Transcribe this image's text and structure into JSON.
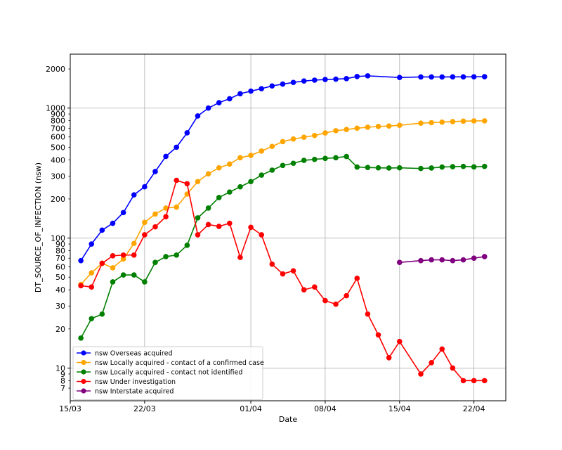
{
  "chart_data": {
    "type": "line",
    "title": "",
    "xlabel": "Date",
    "ylabel": "DT_SOURCE_OF_INFECTION (nsw)",
    "yscale": "log",
    "ylim": [
      5.6,
      2600
    ],
    "xlim": [
      "2020-03-15",
      "2020-04-25"
    ],
    "grid": true,
    "legend_position": "lower-left",
    "x_ticks": [
      {
        "date": "2020-03-15",
        "label": "15/03"
      },
      {
        "date": "2020-03-22",
        "label": "22/03"
      },
      {
        "date": "2020-04-01",
        "label": "01/04"
      },
      {
        "date": "2020-04-08",
        "label": "08/04"
      },
      {
        "date": "2020-04-15",
        "label": "15/04"
      },
      {
        "date": "2020-04-22",
        "label": "22/04"
      }
    ],
    "y_ticks_major": [
      {
        "value": 10,
        "label": "10"
      },
      {
        "value": 100,
        "label": "100"
      },
      {
        "value": 1000,
        "label": "1000"
      }
    ],
    "y_ticks_minor": [
      {
        "value": 7,
        "label": "7"
      },
      {
        "value": 8,
        "label": "8"
      },
      {
        "value": 9,
        "label": "9"
      },
      {
        "value": 20,
        "label": "20"
      },
      {
        "value": 30,
        "label": "30"
      },
      {
        "value": 40,
        "label": "40"
      },
      {
        "value": 50,
        "label": "50"
      },
      {
        "value": 60,
        "label": "60"
      },
      {
        "value": 70,
        "label": "70"
      },
      {
        "value": 80,
        "label": "80"
      },
      {
        "value": 90,
        "label": "90"
      },
      {
        "value": 200,
        "label": "200"
      },
      {
        "value": 300,
        "label": "300"
      },
      {
        "value": 400,
        "label": "400"
      },
      {
        "value": 500,
        "label": "500"
      },
      {
        "value": 600,
        "label": "600"
      },
      {
        "value": 700,
        "label": "700"
      },
      {
        "value": 800,
        "label": "800"
      },
      {
        "value": 900,
        "label": "900"
      },
      {
        "value": 2000,
        "label": "2000"
      }
    ],
    "series": [
      {
        "name": "nsw Overseas acquired",
        "color": "#0000ff",
        "x": [
          "2020-03-16",
          "2020-03-17",
          "2020-03-18",
          "2020-03-19",
          "2020-03-20",
          "2020-03-21",
          "2020-03-22",
          "2020-03-23",
          "2020-03-24",
          "2020-03-25",
          "2020-03-26",
          "2020-03-27",
          "2020-03-28",
          "2020-03-29",
          "2020-03-30",
          "2020-03-31",
          "2020-04-01",
          "2020-04-02",
          "2020-04-03",
          "2020-04-04",
          "2020-04-05",
          "2020-04-06",
          "2020-04-07",
          "2020-04-08",
          "2020-04-09",
          "2020-04-10",
          "2020-04-11",
          "2020-04-12",
          "2020-04-15",
          "2020-04-17",
          "2020-04-18",
          "2020-04-19",
          "2020-04-20",
          "2020-04-21",
          "2020-04-22",
          "2020-04-23"
        ],
        "y": [
          67,
          90,
          115,
          130,
          157,
          215,
          248,
          325,
          425,
          500,
          645,
          870,
          1000,
          1100,
          1180,
          1290,
          1350,
          1410,
          1480,
          1530,
          1575,
          1615,
          1640,
          1660,
          1670,
          1685,
          1750,
          1770,
          1720,
          1735,
          1735,
          1735,
          1738,
          1738,
          1740,
          1745
        ]
      },
      {
        "name": "nsw Locally acquired - contact of a confirmed case",
        "color": "#ffa500",
        "x": [
          "2020-03-16",
          "2020-03-17",
          "2020-03-18",
          "2020-03-19",
          "2020-03-20",
          "2020-03-21",
          "2020-03-22",
          "2020-03-23",
          "2020-03-24",
          "2020-03-25",
          "2020-03-26",
          "2020-03-27",
          "2020-03-28",
          "2020-03-29",
          "2020-03-30",
          "2020-03-31",
          "2020-04-01",
          "2020-04-02",
          "2020-04-03",
          "2020-04-04",
          "2020-04-05",
          "2020-04-06",
          "2020-04-07",
          "2020-04-08",
          "2020-04-09",
          "2020-04-10",
          "2020-04-11",
          "2020-04-12",
          "2020-04-13",
          "2020-04-14",
          "2020-04-15",
          "2020-04-17",
          "2020-04-18",
          "2020-04-19",
          "2020-04-20",
          "2020-04-21",
          "2020-04-22",
          "2020-04-23"
        ],
        "y": [
          44,
          54,
          64,
          59,
          69,
          91,
          132,
          153,
          170,
          173,
          218,
          272,
          312,
          347,
          371,
          415,
          433,
          467,
          507,
          552,
          578,
          597,
          615,
          644,
          670,
          684,
          700,
          712,
          722,
          728,
          737,
          765,
          772,
          780,
          787,
          793,
          797,
          797
        ]
      },
      {
        "name": "nsw Locally acquired - contact not identified",
        "color": "#008000",
        "x": [
          "2020-03-16",
          "2020-03-17",
          "2020-03-18",
          "2020-03-19",
          "2020-03-20",
          "2020-03-21",
          "2020-03-22",
          "2020-03-23",
          "2020-03-24",
          "2020-03-25",
          "2020-03-26",
          "2020-03-27",
          "2020-03-28",
          "2020-03-29",
          "2020-03-30",
          "2020-03-31",
          "2020-04-01",
          "2020-04-02",
          "2020-04-03",
          "2020-04-04",
          "2020-04-05",
          "2020-04-06",
          "2020-04-07",
          "2020-04-08",
          "2020-04-09",
          "2020-04-10",
          "2020-04-11",
          "2020-04-12",
          "2020-04-13",
          "2020-04-14",
          "2020-04-15",
          "2020-04-17",
          "2020-04-18",
          "2020-04-19",
          "2020-04-20",
          "2020-04-21",
          "2020-04-22",
          "2020-04-23"
        ],
        "y": [
          17,
          24,
          26,
          46,
          52,
          52,
          46,
          65,
          72,
          74,
          88,
          143,
          170,
          205,
          226,
          248,
          272,
          305,
          333,
          362,
          376,
          396,
          403,
          410,
          415,
          424,
          352,
          349,
          347,
          346,
          347,
          343,
          346,
          352,
          354,
          356,
          353,
          356
        ]
      },
      {
        "name": "nsw Under investigation",
        "color": "#ff0000",
        "x": [
          "2020-03-16",
          "2020-03-17",
          "2020-03-18",
          "2020-03-19",
          "2020-03-20",
          "2020-03-21",
          "2020-03-22",
          "2020-03-23",
          "2020-03-24",
          "2020-03-25",
          "2020-03-26",
          "2020-03-27",
          "2020-03-28",
          "2020-03-29",
          "2020-03-30",
          "2020-03-31",
          "2020-04-01",
          "2020-04-02",
          "2020-04-03",
          "2020-04-04",
          "2020-04-05",
          "2020-04-06",
          "2020-04-07",
          "2020-04-08",
          "2020-04-09",
          "2020-04-10",
          "2020-04-11",
          "2020-04-12",
          "2020-04-13",
          "2020-04-14",
          "2020-04-15",
          "2020-04-17",
          "2020-04-18",
          "2020-04-19",
          "2020-04-20",
          "2020-04-21",
          "2020-04-22",
          "2020-04-23"
        ],
        "y": [
          43,
          42,
          64,
          73,
          74,
          74,
          106,
          122,
          146,
          278,
          262,
          106,
          127,
          123,
          130,
          71,
          121,
          106,
          63,
          53,
          56,
          40,
          42,
          33,
          31,
          36,
          49,
          26,
          18,
          12,
          16,
          9,
          11,
          14,
          10,
          8,
          8,
          8
        ]
      },
      {
        "name": "nsw Interstate acquired",
        "color": "#800080",
        "x": [
          "2020-04-15",
          "2020-04-17",
          "2020-04-18",
          "2020-04-19",
          "2020-04-20",
          "2020-04-21",
          "2020-04-22",
          "2020-04-23"
        ],
        "y": [
          65,
          67,
          68,
          68,
          67,
          68,
          70,
          72
        ]
      }
    ]
  }
}
